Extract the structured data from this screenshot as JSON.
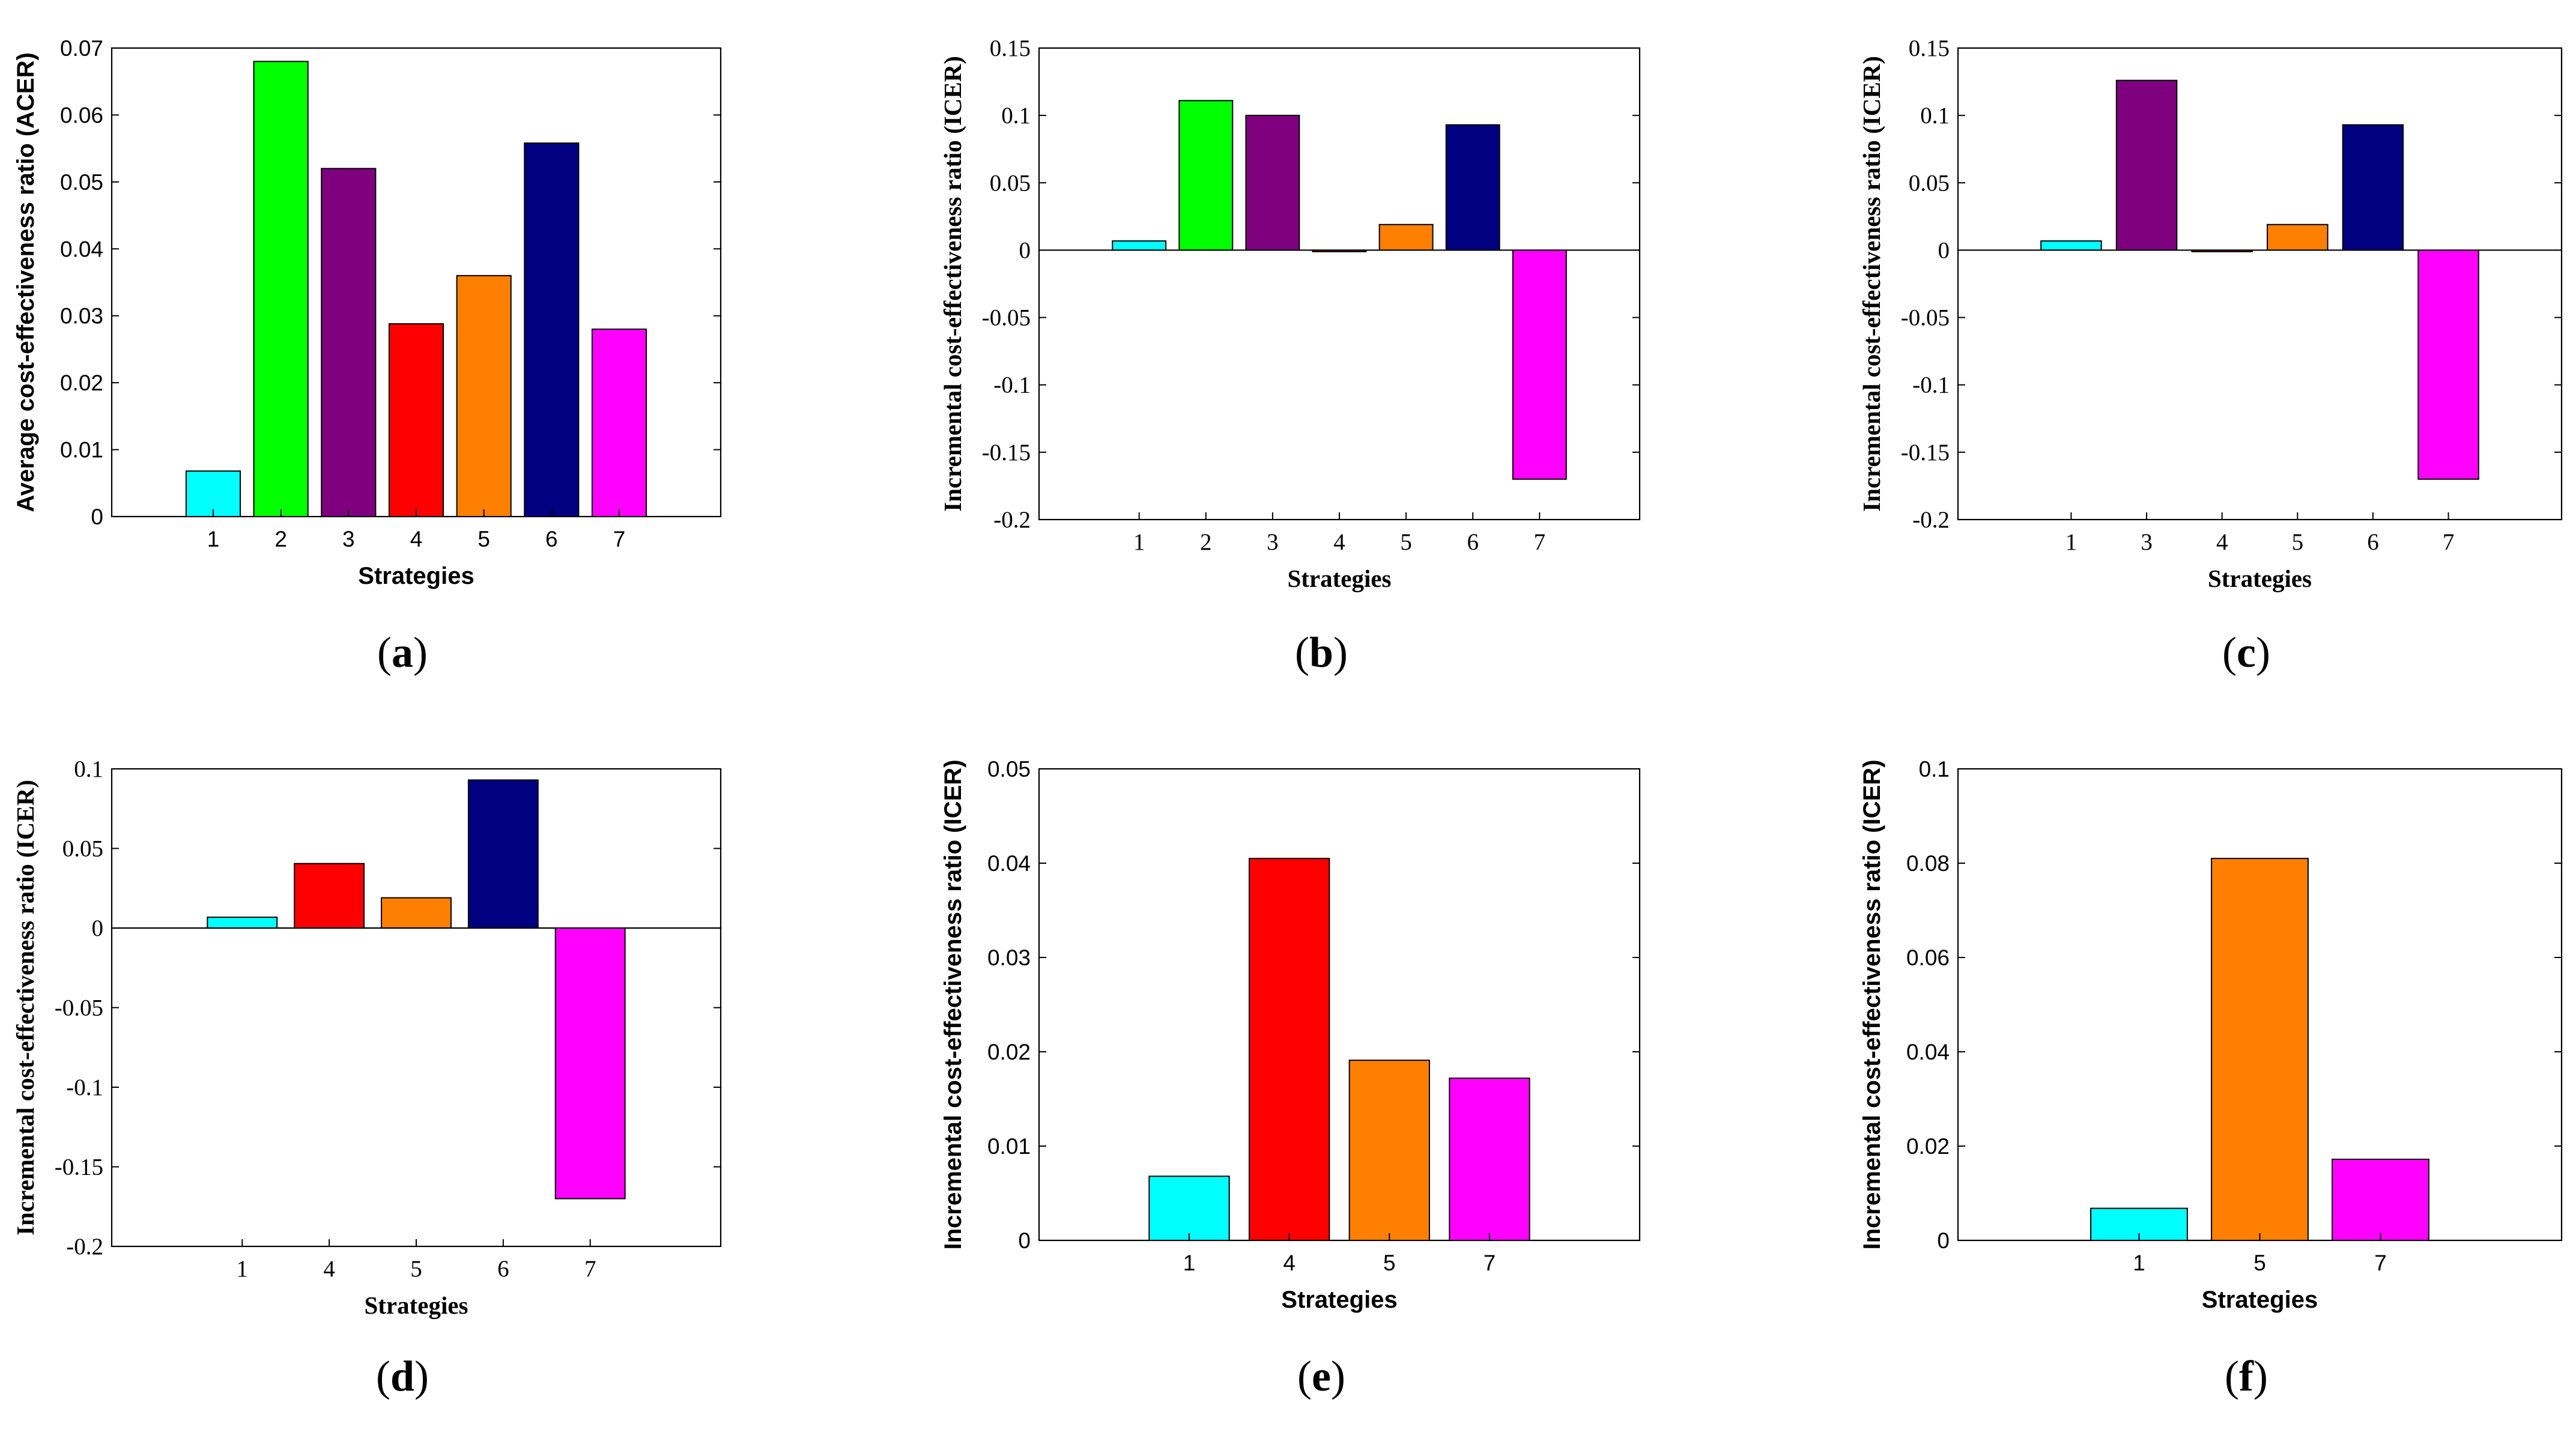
{
  "chart_data": [
    {
      "id": "a",
      "type": "bar",
      "caption_letter": "a",
      "font": "sans",
      "xlabel": "Strategies",
      "ylabel": "Average cost-effectiveness ratio (ACER)",
      "ylim": [
        0,
        0.07
      ],
      "yticks": [
        0,
        0.01,
        0.02,
        0.03,
        0.04,
        0.05,
        0.06,
        0.07
      ],
      "ytick_labels": [
        "0",
        "0.01",
        "0.02",
        "0.03",
        "0.04",
        "0.05",
        "0.06",
        "0.07"
      ],
      "categories": [
        "1",
        "2",
        "3",
        "4",
        "5",
        "6",
        "7"
      ],
      "values": [
        0.0068,
        0.068,
        0.052,
        0.0288,
        0.036,
        0.0558,
        0.028
      ],
      "colors": [
        "#00FFFF",
        "#00FF00",
        "#7F007F",
        "#FF0000",
        "#FF8000",
        "#000080",
        "#FF00FF"
      ]
    },
    {
      "id": "b",
      "type": "bar",
      "caption_letter": "b",
      "font": "serif",
      "xlabel": "Strategies",
      "ylabel": "Incremental cost-effectiveness ratio (ICER)",
      "ylim": [
        -0.2,
        0.15
      ],
      "yticks": [
        -0.2,
        -0.15,
        -0.1,
        -0.05,
        0,
        0.05,
        0.1,
        0.15
      ],
      "ytick_labels": [
        "-0.2",
        "-0.15",
        "-0.1",
        "-0.05",
        "0",
        "0.05",
        "0.1",
        "0.15"
      ],
      "categories": [
        "1",
        "2",
        "3",
        "4",
        "5",
        "6",
        "7"
      ],
      "values": [
        0.0068,
        0.111,
        0.1,
        -0.001,
        0.019,
        0.093,
        -0.17
      ],
      "colors": [
        "#00FFFF",
        "#00FF00",
        "#7F007F",
        "#FF0000",
        "#FF8000",
        "#000080",
        "#FF00FF"
      ]
    },
    {
      "id": "c",
      "type": "bar",
      "caption_letter": "c",
      "font": "serif",
      "xlabel": "Strategies",
      "ylabel": "Incremental cost-effectiveness ratio (ICER)",
      "ylim": [
        -0.2,
        0.15
      ],
      "yticks": [
        -0.2,
        -0.15,
        -0.1,
        -0.05,
        0,
        0.05,
        0.1,
        0.15
      ],
      "ytick_labels": [
        "-0.2",
        "-0.15",
        "-0.1",
        "-0.05",
        "0",
        "0.05",
        "0.1",
        "0.15"
      ],
      "categories": [
        "1",
        "3",
        "4",
        "5",
        "6",
        "7"
      ],
      "values": [
        0.0068,
        0.126,
        -0.001,
        0.019,
        0.093,
        -0.17
      ],
      "colors": [
        "#00FFFF",
        "#7F007F",
        "#FF0000",
        "#FF8000",
        "#000080",
        "#FF00FF"
      ]
    },
    {
      "id": "d",
      "type": "bar",
      "caption_letter": "d",
      "font": "serif",
      "xlabel": "Strategies",
      "ylabel": "Incremental cost-effectiveness ratio (ICER)",
      "ylim": [
        -0.2,
        0.1
      ],
      "yticks": [
        -0.2,
        -0.15,
        -0.1,
        -0.05,
        0,
        0.05,
        0.1
      ],
      "ytick_labels": [
        "-0.2",
        "-0.15",
        "-0.1",
        "-0.05",
        "0",
        "0.05",
        "0.1"
      ],
      "categories": [
        "1",
        "4",
        "5",
        "6",
        "7"
      ],
      "values": [
        0.0068,
        0.0405,
        0.019,
        0.093,
        -0.17
      ],
      "colors": [
        "#00FFFF",
        "#FF0000",
        "#FF8000",
        "#000080",
        "#FF00FF"
      ]
    },
    {
      "id": "e",
      "type": "bar",
      "caption_letter": "e",
      "font": "sans",
      "xlabel": "Strategies",
      "ylabel": "Incremental cost-effectiveness ratio (ICER)",
      "ylim": [
        0,
        0.05
      ],
      "yticks": [
        0,
        0.01,
        0.02,
        0.03,
        0.04,
        0.05
      ],
      "ytick_labels": [
        "0",
        "0.01",
        "0.02",
        "0.03",
        "0.04",
        "0.05"
      ],
      "categories": [
        "1",
        "4",
        "5",
        "7"
      ],
      "values": [
        0.0068,
        0.0405,
        0.0191,
        0.0172
      ],
      "colors": [
        "#00FFFF",
        "#FF0000",
        "#FF8000",
        "#FF00FF"
      ]
    },
    {
      "id": "f",
      "type": "bar",
      "caption_letter": "f",
      "font": "sans",
      "xlabel": "Strategies",
      "ylabel": "Incremental cost-effectiveness ratio (ICER)",
      "ylim": [
        0,
        0.1
      ],
      "yticks": [
        0,
        0.02,
        0.04,
        0.06,
        0.08,
        0.1
      ],
      "ytick_labels": [
        "0",
        "0.02",
        "0.04",
        "0.06",
        "0.08",
        "0.1"
      ],
      "categories": [
        "1",
        "5",
        "7"
      ],
      "values": [
        0.0068,
        0.081,
        0.0172
      ],
      "colors": [
        "#00FFFF",
        "#FF8000",
        "#FF00FF"
      ]
    }
  ]
}
